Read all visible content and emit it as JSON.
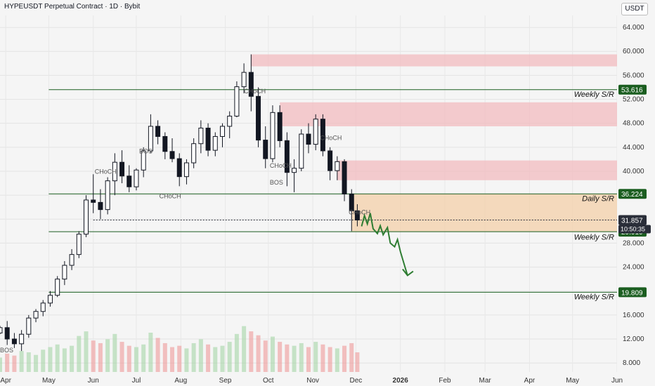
{
  "header": {
    "title": "HYPEUSDT Perpetual Contract · 1D · Bybit",
    "currency": "USDT"
  },
  "chart_data": {
    "type": "candlestick",
    "y_ticks": [
      "64.000",
      "60.000",
      "56.000",
      "52.000",
      "48.000",
      "44.000",
      "40.000",
      "36.000",
      "32.000",
      "28.000",
      "24.000",
      "20.000",
      "16.000",
      "12.000",
      "8.000"
    ],
    "y_tick_values": [
      64,
      60,
      56,
      52,
      48,
      44,
      40,
      36,
      32,
      28,
      24,
      20,
      16,
      12,
      8
    ],
    "x_ticks": [
      "Apr",
      "May",
      "Jun",
      "Jul",
      "Aug",
      "Sep",
      "Oct",
      "Nov",
      "Dec",
      "2026",
      "Feb",
      "Mar",
      "Apr",
      "May",
      "Jun"
    ],
    "x_tick_values": [
      "2025-04-01",
      "2025-05-01",
      "2025-06-01",
      "2025-07-01",
      "2025-08-01",
      "2025-09-01",
      "2025-10-01",
      "2025-11-01",
      "2025-12-01",
      "2026-01-01",
      "2026-02-01",
      "2026-03-01",
      "2026-04-01",
      "2026-05-01",
      "2026-06-01"
    ],
    "ylim": [
      6.5,
      66
    ],
    "xlim": [
      "2025-03-28",
      "2026-06-01"
    ],
    "candles": [
      [
        "2025-03-28",
        13,
        14.2,
        12.8,
        13.9
      ],
      [
        "2025-04-02",
        13.9,
        15,
        11,
        12
      ],
      [
        "2025-04-07",
        12,
        13,
        10.5,
        11.2
      ],
      [
        "2025-04-12",
        11.2,
        13.5,
        10,
        12.8
      ],
      [
        "2025-04-17",
        12.8,
        16,
        12.2,
        15.5
      ],
      [
        "2025-04-22",
        15.5,
        17,
        14.8,
        16.6
      ],
      [
        "2025-04-27",
        16.6,
        18.5,
        15.8,
        18
      ],
      [
        "2025-05-02",
        18,
        20,
        17.4,
        19.3
      ],
      [
        "2025-05-07",
        19.3,
        22.5,
        19,
        22
      ],
      [
        "2025-05-12",
        22,
        25,
        21,
        24.3
      ],
      [
        "2025-05-17",
        24.3,
        27,
        23.5,
        26.1
      ],
      [
        "2025-05-22",
        26.1,
        30,
        25.5,
        29.5
      ],
      [
        "2025-05-27",
        29.5,
        36,
        29,
        35.2
      ],
      [
        "2025-06-01",
        35.2,
        39.5,
        33,
        34.8
      ],
      [
        "2025-06-06",
        34.8,
        37,
        32,
        33.6
      ],
      [
        "2025-06-11",
        33.6,
        39,
        32.8,
        38.4
      ],
      [
        "2025-06-16",
        38.4,
        43,
        36,
        41.5
      ],
      [
        "2025-06-21",
        41.5,
        43.5,
        38,
        39.2
      ],
      [
        "2025-06-26",
        39.2,
        41,
        36.5,
        37.4
      ],
      [
        "2025-07-01",
        37.4,
        40.5,
        36.8,
        40.2
      ],
      [
        "2025-07-06",
        40.2,
        44,
        39,
        43.4
      ],
      [
        "2025-07-11",
        43.4,
        49.5,
        43,
        47.5
      ],
      [
        "2025-07-16",
        47.5,
        48.5,
        44.5,
        45.8
      ],
      [
        "2025-07-21",
        45.8,
        46.5,
        42,
        43.3
      ],
      [
        "2025-07-26",
        43.3,
        45.5,
        41.5,
        42.1
      ],
      [
        "2025-07-31",
        42.1,
        43,
        37.5,
        39.1
      ],
      [
        "2025-08-05",
        39.1,
        42,
        37.8,
        41.4
      ],
      [
        "2025-08-10",
        41.4,
        45.5,
        40.5,
        44.6
      ],
      [
        "2025-08-15",
        44.6,
        48.5,
        43,
        47.2
      ],
      [
        "2025-08-20",
        47.2,
        48,
        42.5,
        43.5
      ],
      [
        "2025-08-25",
        43.5,
        46.5,
        42.5,
        45.8
      ],
      [
        "2025-08-30",
        45.8,
        48,
        44,
        47.5
      ],
      [
        "2025-09-04",
        47.5,
        50,
        45.5,
        49.2
      ],
      [
        "2025-09-09",
        49.2,
        55,
        49,
        54.1
      ],
      [
        "2025-09-14",
        54.1,
        58,
        53,
        56.5
      ],
      [
        "2025-09-19",
        56.5,
        59.5,
        50,
        52.5
      ],
      [
        "2025-09-24",
        52.5,
        54,
        44,
        45.2
      ],
      [
        "2025-09-29",
        45.2,
        47.5,
        40.5,
        42.1
      ],
      [
        "2025-10-04",
        42.1,
        51,
        41.5,
        49.8
      ],
      [
        "2025-10-09",
        49.8,
        51,
        44,
        45.1
      ],
      [
        "2025-10-14",
        45.1,
        46.5,
        37.5,
        39.8
      ],
      [
        "2025-10-19",
        39.8,
        42,
        36.5,
        40.5
      ],
      [
        "2025-10-24",
        40.5,
        47,
        40,
        46.2
      ],
      [
        "2025-10-29",
        46.2,
        48,
        43,
        44.5
      ],
      [
        "2025-11-03",
        44.5,
        49.5,
        43.5,
        48.7
      ],
      [
        "2025-11-08",
        48.7,
        49.5,
        42.5,
        43.4
      ],
      [
        "2025-11-13",
        43.4,
        44,
        38.5,
        40.1
      ],
      [
        "2025-11-18",
        40.1,
        42.5,
        38.5,
        41.6
      ],
      [
        "2025-11-23",
        41.6,
        42,
        35,
        36.2
      ],
      [
        "2025-11-28",
        36.2,
        37,
        30,
        33.4
      ],
      [
        "2025-12-02",
        33.4,
        34.5,
        30.8,
        31.857
      ]
    ],
    "volume": [
      22,
      28,
      25,
      32,
      30,
      26,
      34,
      38,
      42,
      36,
      40,
      55,
      62,
      48,
      44,
      50,
      58,
      46,
      40,
      38,
      42,
      60,
      52,
      44,
      38,
      40,
      36,
      44,
      50,
      42,
      38,
      40,
      46,
      58,
      70,
      62,
      56,
      48,
      54,
      46,
      42,
      40,
      44,
      38,
      46,
      42,
      38,
      36,
      40,
      44,
      30
    ],
    "volume_range": [
      0,
      75
    ],
    "projection": [
      [
        "2025-12-05",
        30.8
      ],
      [
        "2025-12-07",
        32.6
      ],
      [
        "2025-12-09",
        31.2
      ],
      [
        "2025-12-11",
        33.0
      ],
      [
        "2025-12-13",
        30.4
      ],
      [
        "2025-12-16",
        29.6
      ],
      [
        "2025-12-18",
        30.9
      ],
      [
        "2025-12-20",
        29.4
      ],
      [
        "2025-12-23",
        30.6
      ],
      [
        "2025-12-25",
        28.0
      ],
      [
        "2025-12-28",
        27.4
      ],
      [
        "2025-12-30",
        28.6
      ],
      [
        "2026-01-01",
        26.6
      ],
      [
        "2026-01-04",
        24.2
      ],
      [
        "2026-01-06",
        22.6
      ]
    ],
    "current_price": "31.857",
    "countdown": "10:50:35",
    "levels": [
      {
        "label": "53.616",
        "value": 53.616,
        "color": "#1b5e20"
      },
      {
        "label": "36.224",
        "value": 36.224,
        "color": "#1b5e20"
      },
      {
        "label": "31.857",
        "value": 31.857,
        "color": "#2a2e39"
      },
      {
        "label": "29.910",
        "value": 29.91,
        "color": "#1b5e20"
      },
      {
        "label": "19.809",
        "value": 19.809,
        "color": "#1b5e20"
      }
    ],
    "sr_labels": [
      {
        "text": "Weekly S/R",
        "value": 52.4
      },
      {
        "text": "Daily S/R",
        "value": 35.0
      },
      {
        "text": "Weekly S/R",
        "value": 28.6
      },
      {
        "text": "Weekly S/R",
        "value": 18.6
      }
    ],
    "supply_zones": [
      {
        "x0": "2025-09-19",
        "y_top": 59.5,
        "y_bottom": 57.5
      },
      {
        "x0": "2025-10-09",
        "y_top": 51.5,
        "y_bottom": 47.5
      },
      {
        "x0": "2025-11-18",
        "y_top": 41.8,
        "y_bottom": 38.5
      }
    ],
    "demand_zone": {
      "x0": "2025-11-28",
      "y_top": 36.224,
      "y_bottom": 29.91
    },
    "annotations": [
      {
        "text": "CHoCH",
        "date": "2025-09-14",
        "value": 53.0
      },
      {
        "text": "CHoCH",
        "date": "2025-10-02",
        "value": 40.6
      },
      {
        "text": "CHoCH",
        "date": "2025-11-06",
        "value": 45.2
      },
      {
        "text": "CHoCH",
        "date": "2025-07-17",
        "value": 35.5
      },
      {
        "text": "CHoCH",
        "date": "2025-06-02",
        "value": 39.6
      },
      {
        "text": "CHoCH",
        "date": "2025-11-26",
        "value": 32.8
      },
      {
        "text": "BOS",
        "date": "2025-07-03",
        "value": 43.0
      },
      {
        "text": "BOS",
        "date": "2025-10-02",
        "value": 37.8
      },
      {
        "text": "BOS",
        "date": "2025-03-28",
        "value": 9.8
      }
    ]
  }
}
